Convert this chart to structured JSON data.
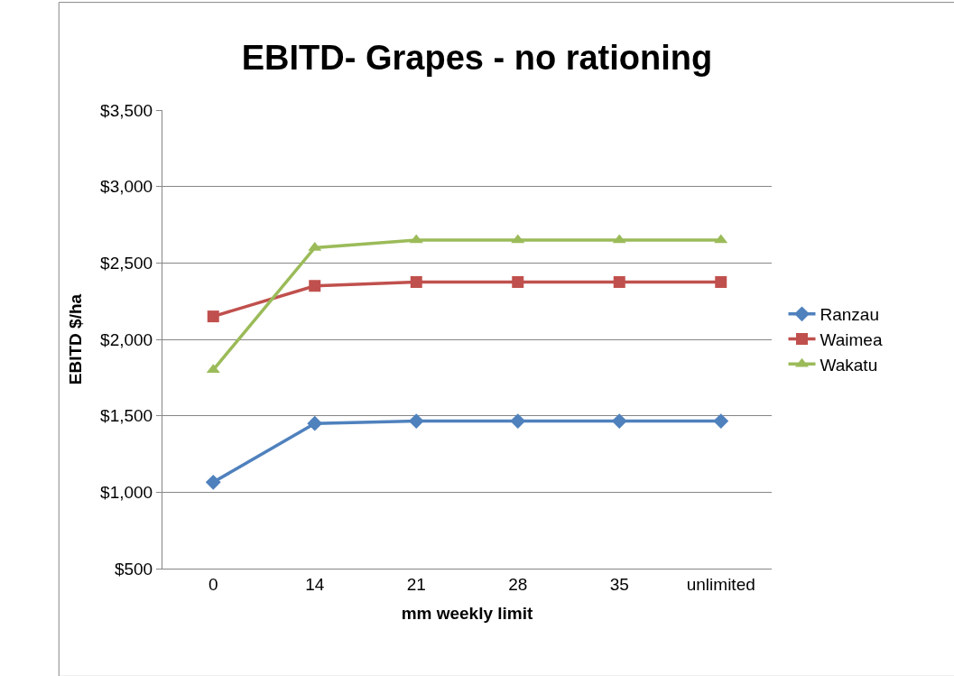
{
  "chart_data": {
    "type": "line",
    "title": "EBITD- Grapes - no rationing",
    "xlabel": "mm weekly limit",
    "ylabel": "EBITD $/ha",
    "categories": [
      "0",
      "14",
      "21",
      "28",
      "35",
      "unlimited"
    ],
    "series": [
      {
        "name": "Ranzau",
        "color": "#4f81bd",
        "marker": "diamond",
        "values": [
          1065,
          1450,
          1465,
          1465,
          1465,
          1465
        ]
      },
      {
        "name": "Waimea",
        "color": "#c0504d",
        "marker": "square",
        "values": [
          2150,
          2350,
          2375,
          2375,
          2375,
          2375
        ]
      },
      {
        "name": "Wakatu",
        "color": "#9bbb59",
        "marker": "triangle",
        "values": [
          1800,
          2600,
          2650,
          2650,
          2650,
          2650
        ]
      }
    ],
    "ylim": [
      500,
      3500
    ],
    "yticks": [
      {
        "value": 500,
        "label": "$500"
      },
      {
        "value": 1000,
        "label": "$1,000"
      },
      {
        "value": 1500,
        "label": "$1,500"
      },
      {
        "value": 2000,
        "label": "$2,000"
      },
      {
        "value": 2500,
        "label": "$2,500"
      },
      {
        "value": 3000,
        "label": "$3,000"
      },
      {
        "value": 3500,
        "label": "$3,500"
      }
    ],
    "grid": "y",
    "legend": "right",
    "line_style": "solid"
  }
}
